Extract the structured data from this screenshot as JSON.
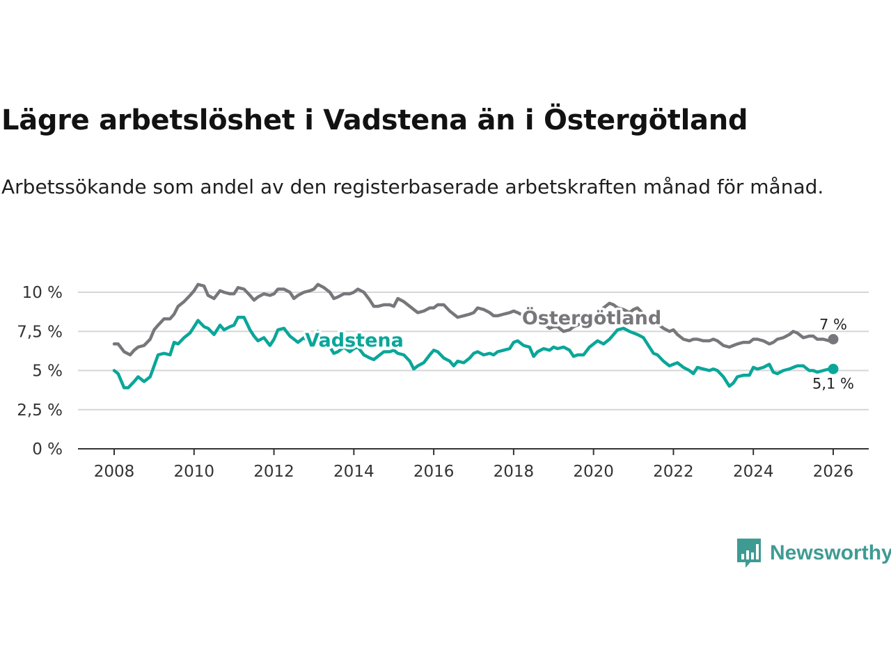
{
  "title": "Lägre arbetslöshet i Vadstena än i Östergötland",
  "subtitle": "Arbetssökande som andel av den registerbaserade arbetskraften månad för månad.",
  "logo": {
    "text": "Newsworthy",
    "icon": "bar-chart-speech-bubble-icon"
  },
  "colors": {
    "vadstena": "#0aa699",
    "ostergotland": "#77777b",
    "grid": "#d6d6d6",
    "axis": "#333333",
    "logo": "#3e9b93"
  },
  "chart_data": {
    "type": "line",
    "title": "Lägre arbetslöshet i Vadstena än i Östergötland",
    "xlabel": "",
    "ylabel": "",
    "xlim": [
      2008,
      2026
    ],
    "ylim": [
      0,
      10
    ],
    "x_ticks": [
      2008,
      2010,
      2012,
      2014,
      2016,
      2018,
      2020,
      2022,
      2024,
      2026
    ],
    "x_tick_labels": [
      "2008",
      "2010",
      "2012",
      "2014",
      "2016",
      "2018",
      "2020",
      "2022",
      "2024",
      "2026"
    ],
    "y_ticks": [
      0,
      2.5,
      5,
      7.5,
      10
    ],
    "y_tick_labels": [
      "0 %",
      "2,5 %",
      "5 %",
      "7,5 %",
      "10 %"
    ],
    "grid": true,
    "series": [
      {
        "name": "Östergötland",
        "label": "Östergötland",
        "end_label": "7 %",
        "color": "#77777b",
        "x": [
          2008.0,
          2008.1,
          2008.25,
          2008.4,
          2008.5,
          2008.6,
          2008.75,
          2008.9,
          2009.0,
          2009.1,
          2009.25,
          2009.4,
          2009.5,
          2009.6,
          2009.75,
          2009.9,
          2010.0,
          2010.1,
          2010.25,
          2010.35,
          2010.5,
          2010.65,
          2010.75,
          2010.9,
          2011.0,
          2011.1,
          2011.25,
          2011.4,
          2011.5,
          2011.6,
          2011.75,
          2011.9,
          2012.0,
          2012.1,
          2012.25,
          2012.4,
          2012.5,
          2012.6,
          2012.75,
          2012.9,
          2013.0,
          2013.1,
          2013.25,
          2013.4,
          2013.5,
          2013.6,
          2013.75,
          2013.9,
          2014.0,
          2014.1,
          2014.25,
          2014.4,
          2014.5,
          2014.6,
          2014.75,
          2014.9,
          2015.0,
          2015.1,
          2015.25,
          2015.4,
          2015.5,
          2015.6,
          2015.75,
          2015.9,
          2016.0,
          2016.1,
          2016.25,
          2016.4,
          2016.5,
          2016.6,
          2016.75,
          2016.9,
          2017.0,
          2017.1,
          2017.25,
          2017.4,
          2017.5,
          2017.6,
          2017.75,
          2017.9,
          2018.0,
          2018.1,
          2018.25,
          2018.4,
          2018.5,
          2018.6,
          2018.75,
          2018.9,
          2019.0,
          2019.1,
          2019.25,
          2019.4,
          2019.5,
          2019.6,
          2019.75,
          2019.9,
          2020.0,
          2020.1,
          2020.25,
          2020.4,
          2020.5,
          2020.6,
          2020.75,
          2020.9,
          2021.0,
          2021.1,
          2021.25,
          2021.4,
          2021.5,
          2021.6,
          2021.75,
          2021.9,
          2022.0,
          2022.1,
          2022.25,
          2022.4,
          2022.5,
          2022.6,
          2022.75,
          2022.9,
          2023.0,
          2023.1,
          2023.25,
          2023.4,
          2023.5,
          2023.6,
          2023.75,
          2023.9,
          2024.0,
          2024.1,
          2024.25,
          2024.4,
          2024.5,
          2024.6,
          2024.75,
          2024.9,
          2025.0,
          2025.1,
          2025.25,
          2025.4,
          2025.5,
          2025.6,
          2025.75,
          2025.9,
          2026.0
        ],
        "values": [
          6.7,
          6.7,
          6.2,
          6.0,
          6.3,
          6.5,
          6.6,
          7.0,
          7.6,
          7.9,
          8.3,
          8.3,
          8.6,
          9.1,
          9.4,
          9.8,
          10.1,
          10.5,
          10.4,
          9.8,
          9.6,
          10.1,
          10.0,
          9.9,
          9.9,
          10.3,
          10.2,
          9.8,
          9.5,
          9.7,
          9.9,
          9.8,
          9.9,
          10.2,
          10.2,
          10.0,
          9.6,
          9.8,
          10.0,
          10.1,
          10.2,
          10.5,
          10.3,
          10.0,
          9.6,
          9.7,
          9.9,
          9.9,
          10.0,
          10.2,
          10.0,
          9.5,
          9.1,
          9.1,
          9.2,
          9.2,
          9.1,
          9.6,
          9.4,
          9.1,
          8.9,
          8.7,
          8.8,
          9.0,
          9.0,
          9.2,
          9.2,
          8.8,
          8.6,
          8.4,
          8.5,
          8.6,
          8.7,
          9.0,
          8.9,
          8.7,
          8.5,
          8.5,
          8.6,
          8.7,
          8.8,
          8.7,
          8.5,
          8.1,
          8.2,
          8.2,
          8.0,
          7.7,
          7.8,
          7.8,
          7.5,
          7.6,
          7.8,
          7.9,
          8.1,
          8.3,
          8.5,
          8.6,
          9.0,
          9.3,
          9.2,
          9.0,
          8.9,
          8.7,
          8.9,
          9.0,
          8.6,
          8.3,
          8.2,
          8.0,
          7.7,
          7.5,
          7.6,
          7.3,
          7.0,
          6.9,
          7.0,
          7.0,
          6.9,
          6.9,
          7.0,
          6.9,
          6.6,
          6.5,
          6.6,
          6.7,
          6.8,
          6.8,
          7.0,
          7.0,
          6.9,
          6.7,
          6.8,
          7.0,
          7.1,
          7.3,
          7.5,
          7.4,
          7.1,
          7.2,
          7.2,
          7.0,
          7.0,
          6.9,
          7.0
        ]
      },
      {
        "name": "Vadstena",
        "label": "Vadstena",
        "end_label": "5,1 %",
        "color": "#0aa699",
        "x": [
          2008.0,
          2008.1,
          2008.25,
          2008.35,
          2008.5,
          2008.6,
          2008.75,
          2008.9,
          2009.0,
          2009.1,
          2009.25,
          2009.4,
          2009.5,
          2009.6,
          2009.75,
          2009.9,
          2010.0,
          2010.1,
          2010.25,
          2010.35,
          2010.5,
          2010.65,
          2010.75,
          2010.9,
          2011.0,
          2011.1,
          2011.25,
          2011.4,
          2011.5,
          2011.6,
          2011.75,
          2011.9,
          2012.0,
          2012.1,
          2012.25,
          2012.4,
          2012.5,
          2012.6,
          2012.75,
          2012.9,
          2013.0,
          2013.1,
          2013.25,
          2013.4,
          2013.5,
          2013.6,
          2013.75,
          2013.9,
          2014.0,
          2014.1,
          2014.25,
          2014.4,
          2014.5,
          2014.6,
          2014.75,
          2014.9,
          2015.0,
          2015.1,
          2015.25,
          2015.4,
          2015.5,
          2015.6,
          2015.75,
          2015.9,
          2016.0,
          2016.1,
          2016.25,
          2016.4,
          2016.5,
          2016.6,
          2016.75,
          2016.9,
          2017.0,
          2017.1,
          2017.25,
          2017.4,
          2017.5,
          2017.6,
          2017.75,
          2017.9,
          2018.0,
          2018.1,
          2018.25,
          2018.4,
          2018.5,
          2018.6,
          2018.75,
          2018.9,
          2019.0,
          2019.1,
          2019.25,
          2019.4,
          2019.5,
          2019.6,
          2019.75,
          2019.9,
          2020.0,
          2020.1,
          2020.25,
          2020.4,
          2020.5,
          2020.6,
          2020.75,
          2020.9,
          2021.0,
          2021.1,
          2021.25,
          2021.4,
          2021.5,
          2021.6,
          2021.75,
          2021.9,
          2022.0,
          2022.1,
          2022.25,
          2022.4,
          2022.5,
          2022.6,
          2022.75,
          2022.9,
          2023.0,
          2023.1,
          2023.25,
          2023.4,
          2023.5,
          2023.6,
          2023.75,
          2023.9,
          2024.0,
          2024.1,
          2024.25,
          2024.4,
          2024.5,
          2024.6,
          2024.75,
          2024.9,
          2025.0,
          2025.1,
          2025.25,
          2025.4,
          2025.5,
          2025.6,
          2025.75,
          2025.9,
          2026.0
        ],
        "values": [
          5.0,
          4.8,
          3.9,
          3.9,
          4.3,
          4.6,
          4.3,
          4.6,
          5.3,
          6.0,
          6.1,
          6.0,
          6.8,
          6.7,
          7.1,
          7.4,
          7.8,
          8.2,
          7.8,
          7.7,
          7.3,
          7.9,
          7.6,
          7.8,
          7.9,
          8.4,
          8.4,
          7.6,
          7.2,
          6.9,
          7.1,
          6.6,
          7.0,
          7.6,
          7.7,
          7.2,
          7.0,
          6.8,
          7.1,
          6.8,
          7.0,
          7.5,
          7.0,
          6.5,
          6.1,
          6.2,
          6.5,
          6.2,
          6.4,
          6.5,
          6.0,
          5.8,
          5.7,
          5.9,
          6.2,
          6.2,
          6.3,
          6.1,
          6.0,
          5.6,
          5.1,
          5.3,
          5.5,
          6.0,
          6.3,
          6.2,
          5.8,
          5.6,
          5.3,
          5.6,
          5.5,
          5.8,
          6.1,
          6.2,
          6.0,
          6.1,
          6.0,
          6.2,
          6.3,
          6.4,
          6.8,
          6.9,
          6.6,
          6.5,
          5.9,
          6.2,
          6.4,
          6.3,
          6.5,
          6.4,
          6.5,
          6.3,
          5.9,
          6.0,
          6.0,
          6.5,
          6.7,
          6.9,
          6.7,
          7.0,
          7.3,
          7.6,
          7.7,
          7.5,
          7.4,
          7.3,
          7.1,
          6.5,
          6.1,
          6.0,
          5.6,
          5.3,
          5.4,
          5.5,
          5.2,
          5.0,
          4.8,
          5.2,
          5.1,
          5.0,
          5.1,
          5.0,
          4.6,
          4.0,
          4.2,
          4.6,
          4.7,
          4.7,
          5.2,
          5.1,
          5.2,
          5.4,
          4.9,
          4.8,
          5.0,
          5.1,
          5.2,
          5.3,
          5.3,
          5.0,
          5.0,
          4.9,
          5.0,
          5.1,
          5.1
        ]
      }
    ]
  }
}
